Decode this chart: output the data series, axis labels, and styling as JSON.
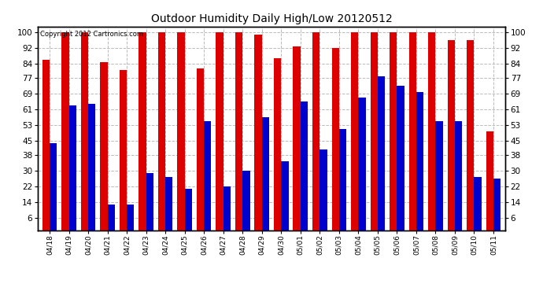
{
  "title": "Outdoor Humidity Daily High/Low 20120512",
  "copyright": "Copyright 2012 Cartronics.com",
  "categories": [
    "04/18",
    "04/19",
    "04/20",
    "04/21",
    "04/22",
    "04/23",
    "04/24",
    "04/25",
    "04/26",
    "04/27",
    "04/28",
    "04/29",
    "04/30",
    "05/01",
    "05/02",
    "05/03",
    "05/04",
    "05/05",
    "05/06",
    "05/07",
    "05/08",
    "05/09",
    "05/10",
    "05/11"
  ],
  "high": [
    86,
    100,
    100,
    85,
    81,
    100,
    100,
    100,
    82,
    100,
    100,
    99,
    87,
    93,
    100,
    92,
    100,
    100,
    100,
    100,
    100,
    96,
    96,
    50
  ],
  "low": [
    44,
    63,
    64,
    13,
    13,
    29,
    27,
    21,
    55,
    22,
    30,
    57,
    35,
    65,
    41,
    51,
    67,
    78,
    73,
    70,
    55,
    55,
    27,
    26
  ],
  "high_color": "#dd0000",
  "low_color": "#0000cc",
  "bg_color": "#ffffff",
  "grid_color": "#bbbbbb",
  "yticks": [
    6,
    14,
    22,
    30,
    38,
    45,
    53,
    61,
    69,
    77,
    84,
    92,
    100
  ],
  "ylim": [
    0,
    103
  ],
  "bar_width": 0.38,
  "figsize": [
    6.9,
    3.75
  ],
  "dpi": 100
}
